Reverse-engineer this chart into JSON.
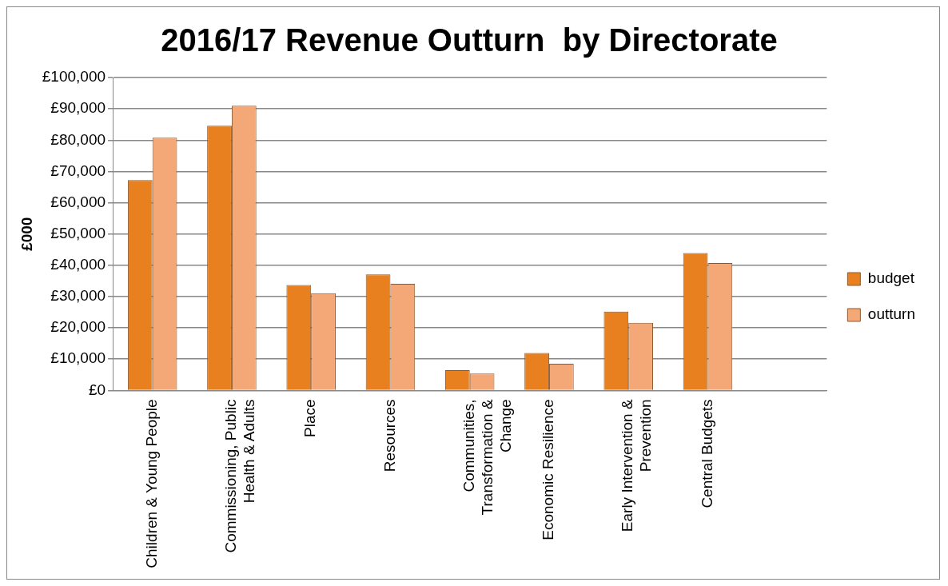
{
  "chart_data": {
    "type": "bar",
    "title": "2016/17 Revenue Outturn  by Directorate",
    "ylabel": "£000",
    "categories": [
      "Children & Young People",
      "Commissioning, Public Health & Adults",
      "Place",
      "Resources",
      "Communities, Transformation & Change",
      "Economic Resilience",
      "Early Intervention & Prevention",
      "Central Budgets",
      null
    ],
    "series": [
      {
        "name": "budget",
        "color": "#e8801f",
        "values": [
          67200,
          84600,
          33700,
          37100,
          6500,
          12000,
          25200,
          43900,
          null
        ]
      },
      {
        "name": "outturn",
        "color": "#f4a878",
        "values": [
          80800,
          91000,
          31100,
          34100,
          5400,
          8500,
          21600,
          40700,
          null
        ]
      }
    ],
    "ylim": [
      0,
      100000
    ],
    "yticks": [
      {
        "value": 0,
        "label": "£0"
      },
      {
        "value": 10000,
        "label": "£10,000"
      },
      {
        "value": 20000,
        "label": "£20,000"
      },
      {
        "value": 30000,
        "label": "£30,000"
      },
      {
        "value": 40000,
        "label": "£40,000"
      },
      {
        "value": 50000,
        "label": "£50,000"
      },
      {
        "value": 60000,
        "label": "£60,000"
      },
      {
        "value": 70000,
        "label": "£70,000"
      },
      {
        "value": 80000,
        "label": "£80,000"
      },
      {
        "value": 90000,
        "label": "£90,000"
      },
      {
        "value": 100000,
        "label": "£100,000"
      }
    ],
    "grid": "y",
    "legend": "right"
  }
}
